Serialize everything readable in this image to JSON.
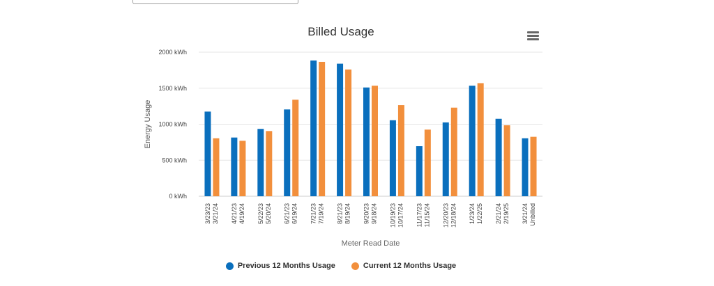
{
  "chart_data": {
    "type": "bar",
    "title": "Billed Usage",
    "xlabel": "Meter Read Date",
    "ylabel": "Energy Usage",
    "ylim": [
      0,
      2000
    ],
    "yticks": [
      0,
      500,
      1000,
      1500,
      2000
    ],
    "ytick_labels": [
      "0 kWh",
      "500 kWh",
      "1000 kWh",
      "1500 kWh",
      "2000 kWh"
    ],
    "categories": [
      [
        "3/23/23",
        "3/21/24"
      ],
      [
        "4/21/23",
        "4/19/24"
      ],
      [
        "5/22/23",
        "5/20/24"
      ],
      [
        "6/21/23",
        "6/19/24"
      ],
      [
        "7/21/23",
        "7/19/24"
      ],
      [
        "8/21/23",
        "8/19/24"
      ],
      [
        "9/20/23",
        "9/18/24"
      ],
      [
        "10/19/23",
        "10/17/24"
      ],
      [
        "11/17/23",
        "11/15/24"
      ],
      [
        "12/20/23",
        "12/18/24"
      ],
      [
        "1/23/24",
        "1/22/25"
      ],
      [
        "2/21/24",
        "2/19/25"
      ],
      [
        "3/21/24",
        "Unbilled"
      ]
    ],
    "series": [
      {
        "name": "Previous 12 Months Usage",
        "color": "#0a6fbd",
        "values": [
          1175,
          815,
          935,
          1205,
          1885,
          1840,
          1510,
          1055,
          695,
          1025,
          1535,
          1075,
          805
        ]
      },
      {
        "name": "Current 12 Months Usage",
        "color": "#f28f3c",
        "values": [
          805,
          770,
          905,
          1340,
          1865,
          1760,
          1535,
          1265,
          925,
          1230,
          1570,
          985,
          825
        ]
      }
    ],
    "grid": true,
    "legend_position": "bottom-center"
  },
  "ui": {
    "menu_icon": "hamburger-menu-icon"
  }
}
